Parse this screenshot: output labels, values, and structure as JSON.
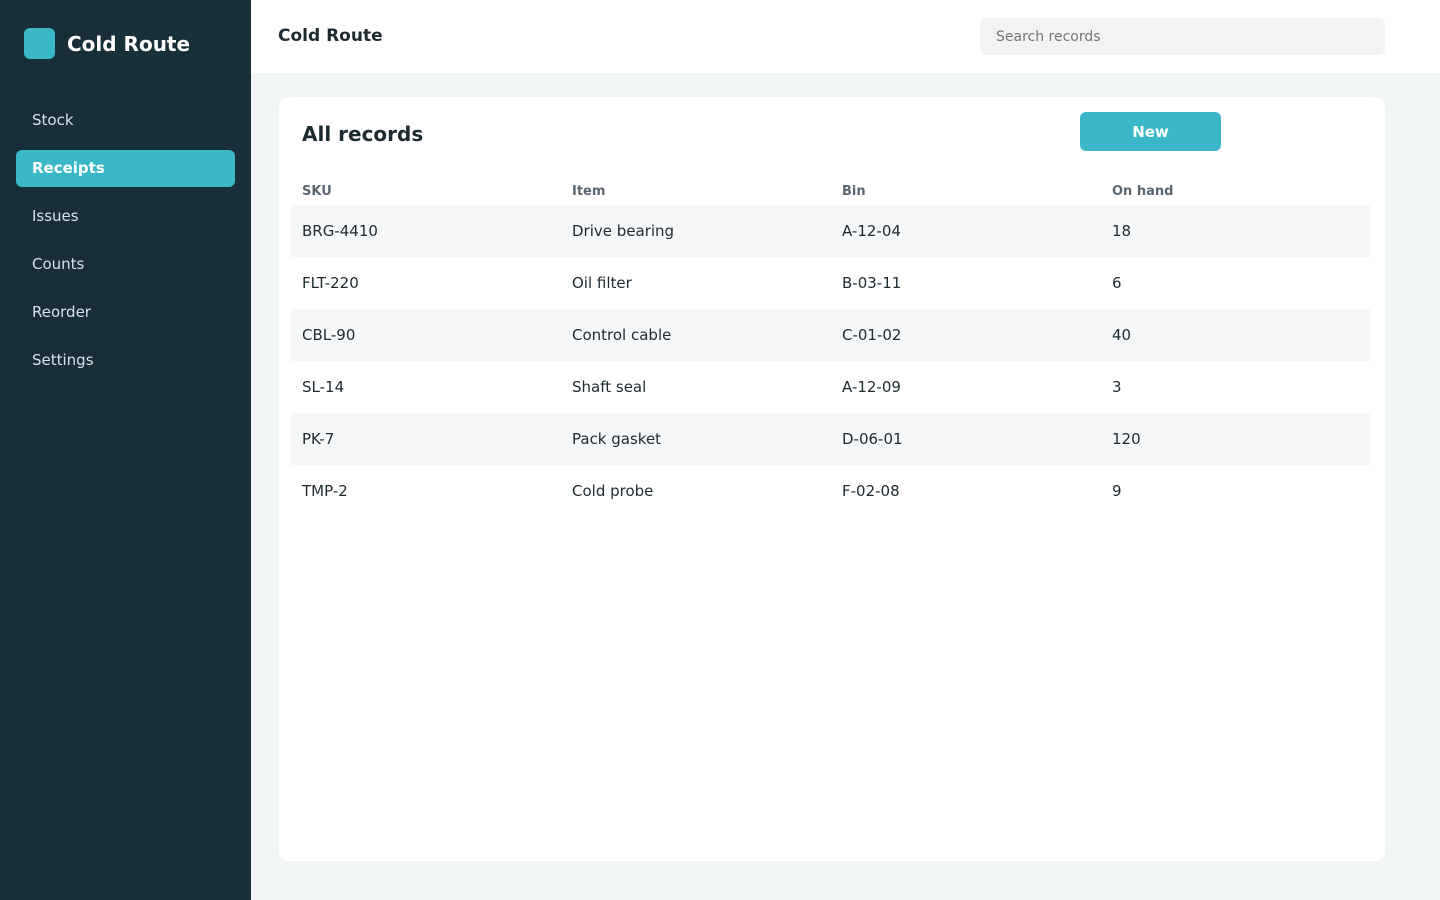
{
  "sidebar": {
    "brand": "Cold Route",
    "nav": [
      "Stock",
      "Receipts",
      "Issues",
      "Counts",
      "Reorder",
      "Settings"
    ],
    "active": 1
  },
  "header": {
    "title": "Cold Route",
    "search_placeholder": "Search records"
  },
  "panel": {
    "title": "All records",
    "button": "New"
  },
  "table": {
    "columns": [
      "SKU",
      "Item",
      "Bin",
      "On hand"
    ],
    "rows": [
      [
        "BRG-4410",
        "Drive bearing",
        "A-12-04",
        "18"
      ],
      [
        "FLT-220",
        "Oil filter",
        "B-03-11",
        "6"
      ],
      [
        "CBL-90",
        "Control cable",
        "C-01-02",
        "40"
      ],
      [
        "SL-14",
        "Shaft seal",
        "A-12-09",
        "3"
      ],
      [
        "PK-7",
        "Pack gasket",
        "D-06-01",
        "120"
      ],
      [
        "TMP-2",
        "Cold probe",
        "F-02-08",
        "9"
      ]
    ]
  }
}
